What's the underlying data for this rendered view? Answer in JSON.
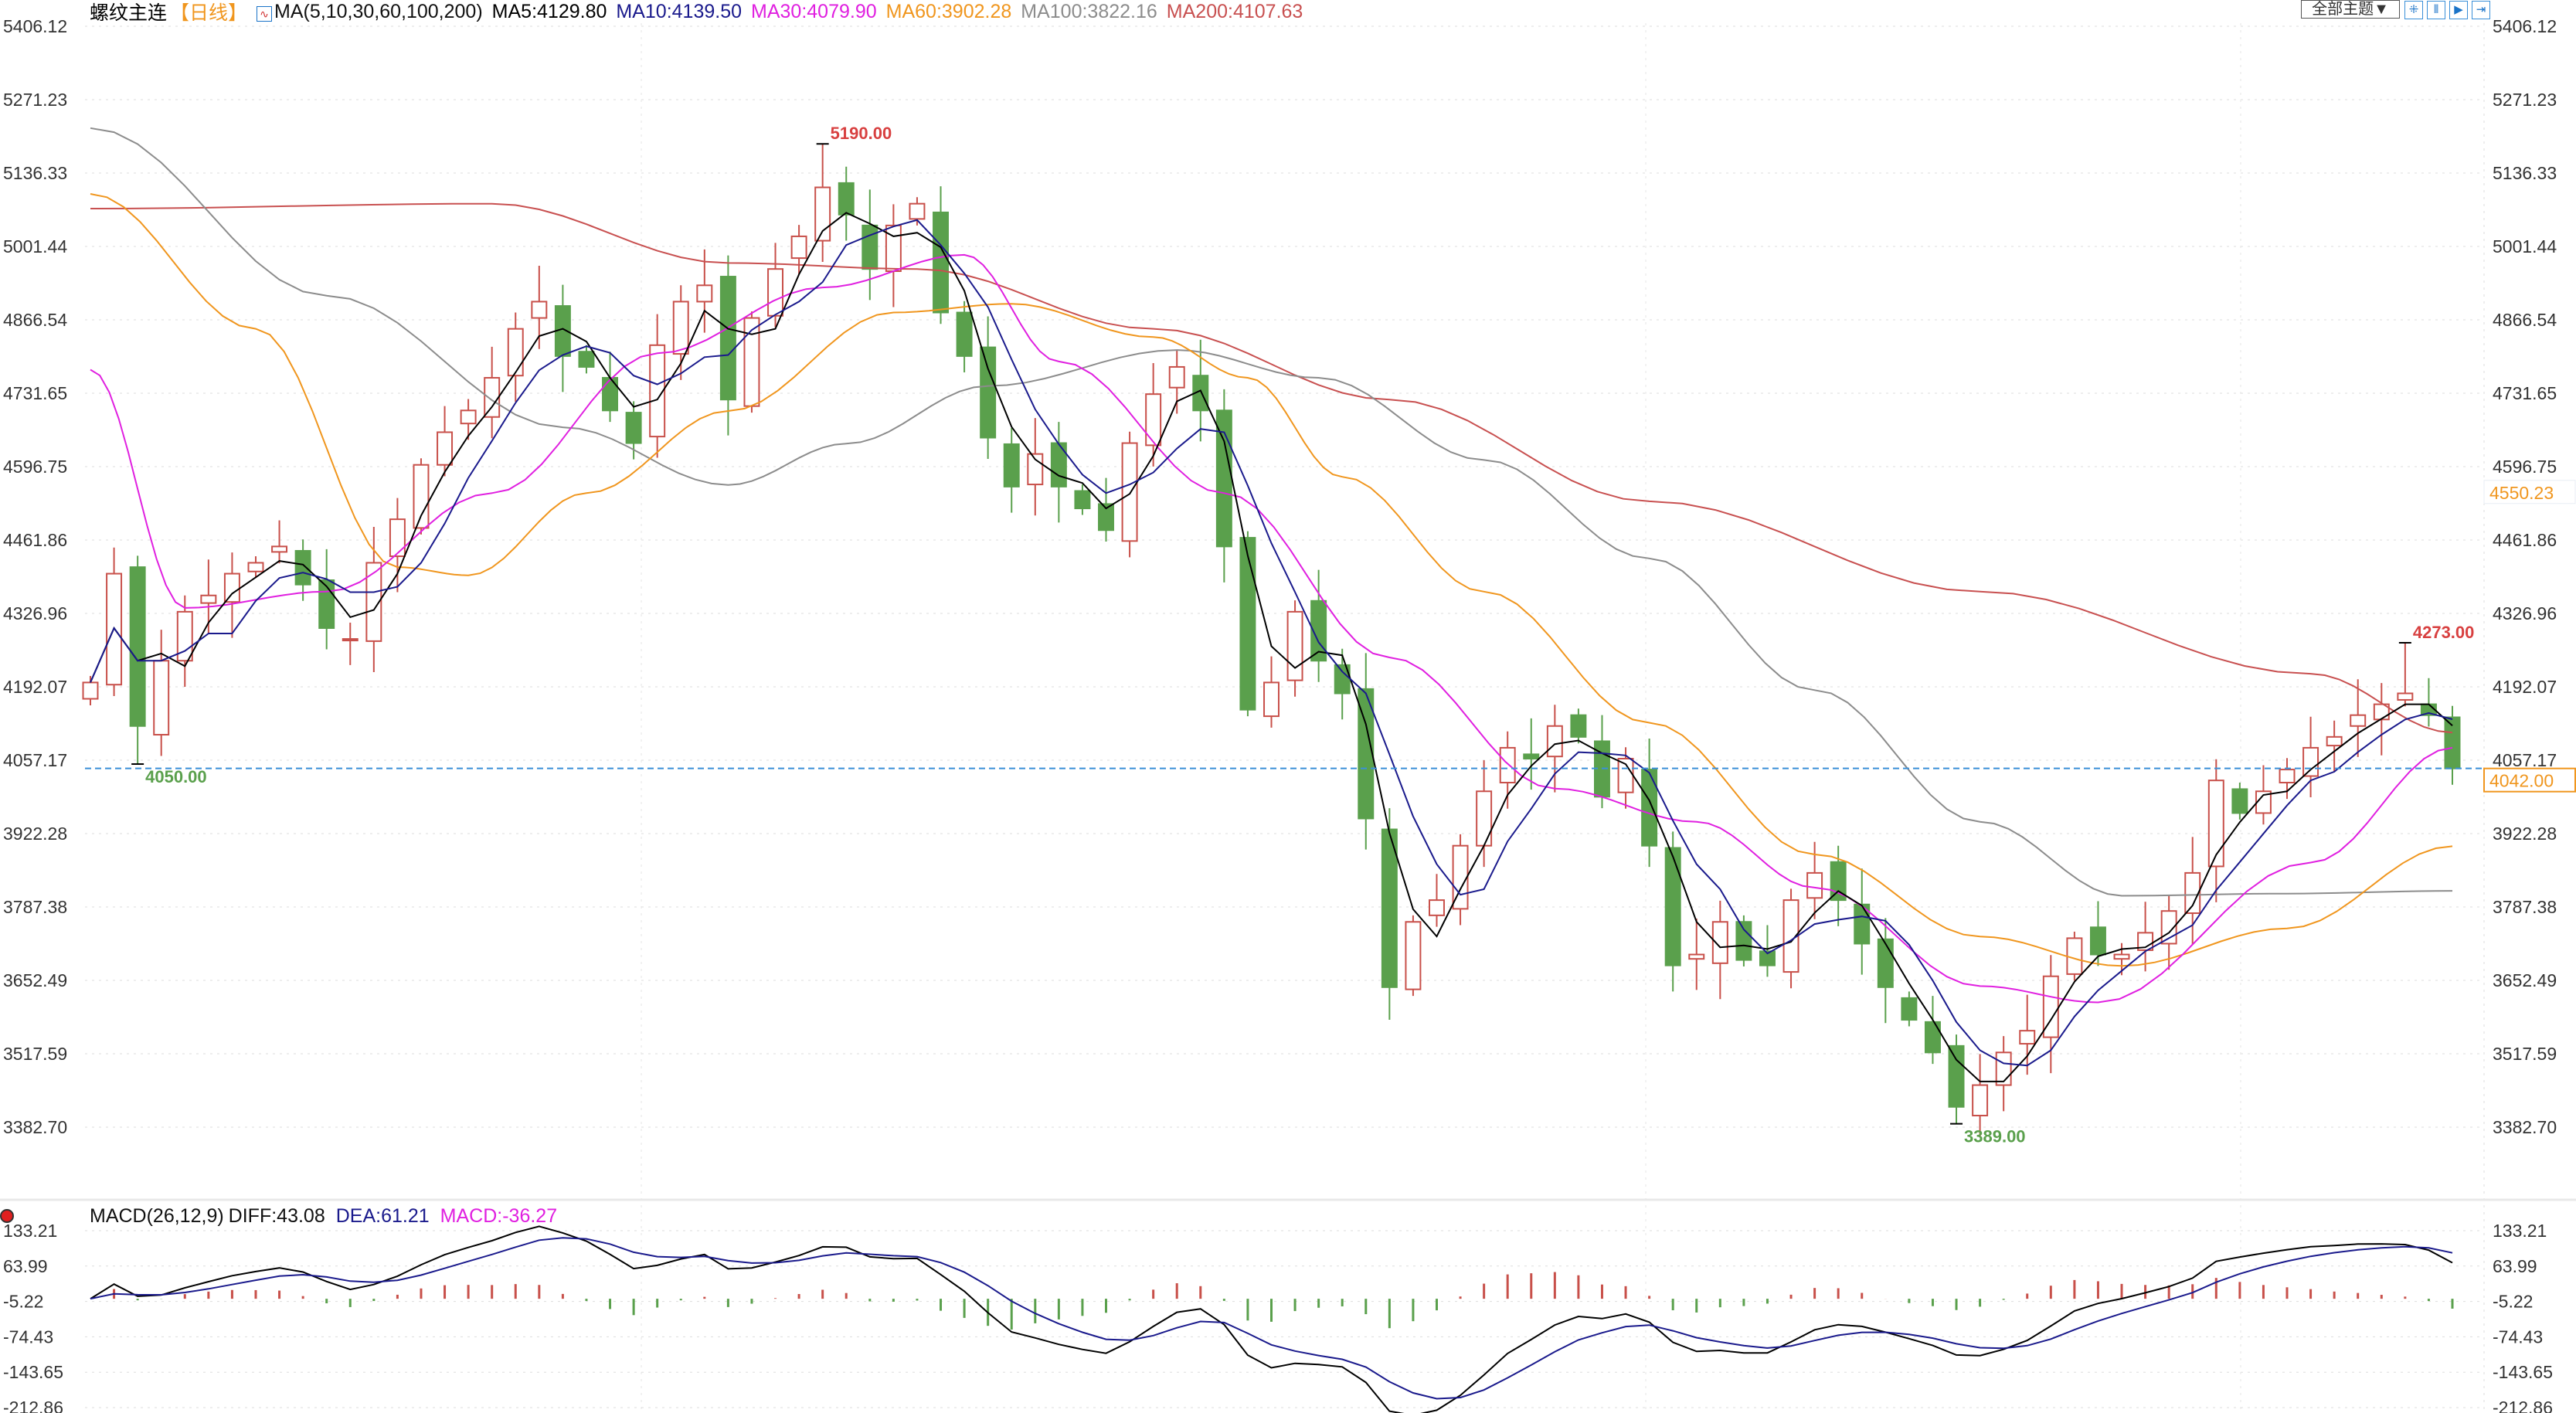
{
  "header": {
    "symbol": "螺纹主连",
    "period": "【日线】",
    "ma_params": "MA(5,10,30,60,100,200)",
    "ma5": "MA5:4129.80",
    "ma10": "MA10:4139.50",
    "ma30": "MA30:4079.90",
    "ma60": "MA60:3902.28",
    "ma100": "MA100:3822.16",
    "ma200": "MA200:4107.63",
    "theme_button": "全部主题▼",
    "tools": [
      {
        "icon": "crosshair-icon",
        "glyph": "⁜"
      },
      {
        "icon": "zoom-in-bars-icon",
        "glyph": "⫴"
      },
      {
        "icon": "play-forward-icon",
        "glyph": "▶"
      },
      {
        "icon": "jump-to-end-icon",
        "glyph": "⇥"
      }
    ]
  },
  "macd_header": {
    "params": "MACD(26,12,9)",
    "diff": "DIFF:43.08",
    "dea": "DEA:61.21",
    "macd": "MACD:-36.27"
  },
  "colors": {
    "up": "#c8504a",
    "down": "#5aa04c",
    "ma5": "#000000",
    "ma10": "#1a1a8c",
    "ma30": "#e020e0",
    "ma60": "#f0961e",
    "ma100": "#8c8c8c",
    "ma200": "#c85050",
    "last_price_line": "#3a8fd8",
    "high_label": "#d84040",
    "low_label": "#5aa04c"
  },
  "chart_data": [
    {
      "type": "candlestick",
      "title": "螺纹主连【日线】",
      "y_ticks": [
        "5406.12",
        "5271.23",
        "5136.33",
        "5001.44",
        "4866.54",
        "4731.65",
        "4596.75",
        "4461.86",
        "4326.96",
        "4192.07",
        "4057.17",
        "3922.28",
        "3787.38",
        "3652.49",
        "3517.59",
        "3382.70"
      ],
      "ylim": [
        3382.7,
        5406.12
      ],
      "grid": true,
      "close": [
        4200,
        4400,
        4120,
        4240,
        4330,
        4360,
        4400,
        4420,
        4450,
        4380,
        4300,
        4280,
        4420,
        4500,
        4600,
        4660,
        4700,
        4760,
        4850,
        4900,
        4800,
        4780,
        4700,
        4640,
        4820,
        4900,
        4930,
        4720,
        4870,
        4960,
        5020,
        5110,
        5060,
        4960,
        5040,
        5080,
        4880,
        4800,
        4650,
        4560,
        4620,
        4560,
        4520,
        4480,
        4640,
        4730,
        4780,
        4700,
        4450,
        4150,
        4200,
        4330,
        4240,
        4180,
        3950,
        3640,
        3760,
        3800,
        3900,
        4000,
        4080,
        4060,
        4120,
        4100,
        3990,
        4060,
        3900,
        3680,
        3700,
        3760,
        3690,
        3680,
        3800,
        3850,
        3800,
        3720,
        3640,
        3580,
        3520,
        3420,
        3460,
        3520,
        3560,
        3660,
        3730,
        3700,
        3700,
        3740,
        3780,
        3850,
        4020,
        3960,
        4000,
        4040,
        4080,
        4100,
        4140,
        4160,
        4180,
        4140,
        4042
      ],
      "marks": [
        {
          "index": 2,
          "kind": "low",
          "value": 4050.0,
          "label": "4050.00"
        },
        {
          "index": 31,
          "kind": "high",
          "value": 5190.0,
          "label": "5190.00"
        },
        {
          "index": 55,
          "kind": "low",
          "value": 3580.0,
          "label": ""
        },
        {
          "index": 79,
          "kind": "low",
          "value": 3389.0,
          "label": "3389.00"
        },
        {
          "index": 98,
          "kind": "high",
          "value": 4273.0,
          "label": "4273.00"
        }
      ],
      "last_price": {
        "value": 4042.0,
        "label": "4042.00"
      },
      "axis_marker": {
        "value": 4550.23,
        "label": "4550.23"
      },
      "moving_averages": {
        "ma30": [
          [
            0,
            4775
          ],
          [
            4,
            4337
          ],
          [
            10,
            4367
          ],
          [
            17,
            4548
          ],
          [
            24,
            4805
          ],
          [
            31,
            4926
          ],
          [
            37,
            4986
          ],
          [
            41,
            4790
          ],
          [
            48,
            4548
          ],
          [
            55,
            4246
          ],
          [
            62,
            4005
          ],
          [
            68,
            3944
          ],
          [
            73,
            3823
          ],
          [
            80,
            3642
          ],
          [
            85,
            3612
          ],
          [
            94,
            3869
          ],
          [
            100,
            4080
          ]
        ],
        "ma60": [
          [
            0,
            5098
          ],
          [
            7,
            4850
          ],
          [
            13,
            4412
          ],
          [
            16,
            4397
          ],
          [
            21,
            4548
          ],
          [
            27,
            4699
          ],
          [
            34,
            4880
          ],
          [
            39,
            4896
          ],
          [
            45,
            4835
          ],
          [
            49,
            4760
          ],
          [
            53,
            4578
          ],
          [
            59,
            4367
          ],
          [
            66,
            4126
          ],
          [
            73,
            3884
          ],
          [
            80,
            3733
          ],
          [
            86,
            3679
          ],
          [
            93,
            3748
          ],
          [
            100,
            3899
          ]
        ],
        "ma100": [
          [
            0,
            5219
          ],
          [
            10,
            4911
          ],
          [
            20,
            4669
          ],
          [
            27,
            4563
          ],
          [
            32,
            4639
          ],
          [
            38,
            4745
          ],
          [
            46,
            4811
          ],
          [
            52,
            4760
          ],
          [
            59,
            4609
          ],
          [
            66,
            4428
          ],
          [
            73,
            4186
          ],
          [
            80,
            3944
          ],
          [
            86,
            3808
          ],
          [
            93,
            3812
          ],
          [
            100,
            3817
          ]
        ],
        "ma200": [
          [
            0,
            5071
          ],
          [
            17,
            5080
          ],
          [
            27,
            4971
          ],
          [
            35,
            4960
          ],
          [
            45,
            4850
          ],
          [
            55,
            4720
          ],
          [
            66,
            4533
          ],
          [
            80,
            4367
          ],
          [
            94,
            4216
          ],
          [
            100,
            4108
          ]
        ]
      }
    },
    {
      "type": "macd",
      "y_ticks": [
        "133.21",
        "63.99",
        "-5.22",
        "-74.43",
        "-143.65",
        "-212.86"
      ],
      "ylim": [
        -212.86,
        133.21
      ]
    }
  ]
}
